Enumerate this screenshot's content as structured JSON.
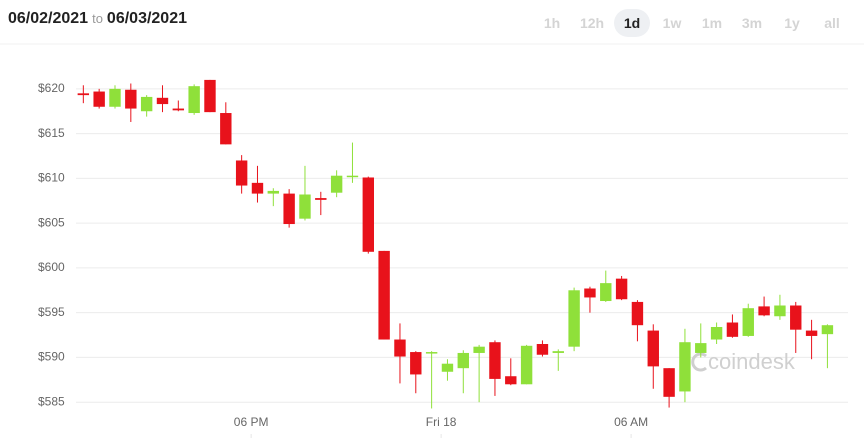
{
  "header": {
    "from": "06/02/2021",
    "separator": "to",
    "to": "06/03/2021",
    "ranges": [
      "1h",
      "12h",
      "1d",
      "1w",
      "1m",
      "3m",
      "1y",
      "all"
    ],
    "selected_range": "1d"
  },
  "chart_data": {
    "type": "candlestick",
    "x": [
      0,
      1,
      2,
      3,
      4,
      5,
      6,
      7,
      8,
      9,
      10,
      11,
      12,
      13,
      14,
      15,
      16,
      17,
      18,
      19,
      20,
      21,
      22,
      23,
      24,
      25,
      26,
      27,
      28,
      29,
      30,
      31,
      32,
      33,
      34,
      35,
      36,
      37,
      38,
      39,
      40,
      41,
      42,
      43,
      44,
      45,
      46,
      47
    ],
    "open": [
      619.5,
      619.7,
      618.0,
      619.9,
      617.5,
      619.0,
      617.8,
      617.3,
      621.0,
      617.3,
      612.0,
      609.5,
      608.3,
      608.3,
      605.5,
      607.8,
      608.4,
      610.2,
      610.1,
      601.9,
      592.0,
      590.6,
      590.5,
      588.4,
      588.8,
      590.5,
      591.7,
      587.9,
      587.0,
      591.5,
      590.5,
      591.2,
      597.7,
      596.3,
      598.8,
      596.2,
      593.0,
      588.8,
      586.2,
      590.5,
      592.0,
      593.9,
      592.4,
      595.7,
      594.6,
      595.8,
      593.0,
      592.6
    ],
    "high": [
      620.4,
      620.0,
      620.4,
      620.6,
      619.3,
      620.4,
      618.7,
      620.5,
      621.0,
      618.5,
      612.6,
      611.4,
      608.9,
      608.8,
      611.4,
      608.5,
      610.9,
      614.0,
      610.2,
      601.9,
      593.8,
      590.7,
      590.7,
      589.8,
      590.8,
      591.4,
      591.9,
      589.9,
      591.4,
      591.9,
      590.9,
      597.8,
      597.9,
      599.7,
      599.1,
      596.4,
      593.7,
      588.8,
      593.2,
      593.8,
      593.9,
      594.8,
      596.0,
      596.8,
      597.0,
      596.2,
      594.2,
      593.7
    ],
    "low": [
      618.4,
      617.8,
      617.8,
      616.3,
      616.9,
      617.4,
      617.5,
      617.1,
      617.4,
      613.8,
      608.3,
      607.3,
      606.9,
      604.5,
      605.3,
      605.9,
      607.9,
      609.5,
      601.6,
      592.0,
      587.1,
      586.0,
      584.3,
      587.4,
      586.0,
      585.0,
      585.7,
      586.9,
      587.0,
      590.1,
      588.5,
      590.7,
      595.0,
      596.2,
      596.4,
      591.8,
      586.5,
      584.4,
      585.0,
      590.0,
      591.5,
      592.2,
      592.3,
      594.6,
      594.2,
      590.5,
      589.8,
      588.8
    ],
    "close": [
      619.3,
      618.0,
      620.0,
      617.8,
      619.1,
      618.3,
      617.6,
      620.3,
      617.4,
      613.8,
      609.2,
      608.3,
      608.6,
      604.9,
      608.2,
      607.6,
      610.3,
      610.3,
      601.8,
      592.0,
      590.1,
      588.1,
      590.6,
      589.3,
      590.5,
      591.2,
      587.6,
      587.0,
      591.3,
      590.3,
      590.7,
      597.5,
      596.7,
      598.3,
      596.5,
      593.6,
      589.0,
      585.6,
      591.7,
      591.6,
      593.4,
      592.3,
      595.5,
      594.7,
      595.8,
      593.1,
      592.4,
      593.6
    ],
    "up_color": "#8fe03a",
    "down_color": "#e8121b",
    "xlim": [
      -4,
      48.3
    ],
    "xticks": [
      {
        "value": 10.6,
        "label": "06 PM"
      },
      {
        "value": 22.6,
        "label": "Fri 18"
      },
      {
        "value": 34.6,
        "label": "06 AM"
      }
    ],
    "ylim": [
      581,
      623
    ],
    "yticks": [
      {
        "value": 585,
        "label": "$585"
      },
      {
        "value": 590,
        "label": "$590"
      },
      {
        "value": 595,
        "label": "$595"
      },
      {
        "value": 600,
        "label": "$600"
      },
      {
        "value": 605,
        "label": "$605"
      },
      {
        "value": 610,
        "label": "$610"
      },
      {
        "value": 615,
        "label": "$615"
      },
      {
        "value": 620,
        "label": "$620"
      }
    ],
    "grid": true,
    "watermark": "coindesk"
  }
}
